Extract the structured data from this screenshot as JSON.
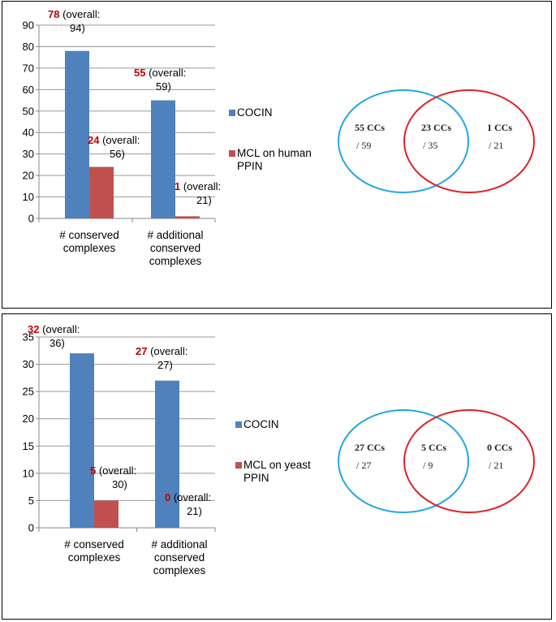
{
  "chart_data": [
    {
      "type": "bar",
      "categories": [
        "# conserved complexes",
        "# additional conserved complexes"
      ],
      "category_lines": [
        [
          "# conserved",
          "complexes"
        ],
        [
          "# additional",
          "conserved",
          "complexes"
        ]
      ],
      "series": [
        {
          "name": "COCIN",
          "color": "#4f81bd",
          "values": [
            78,
            55
          ],
          "overall": [
            94,
            59
          ]
        },
        {
          "name": "MCL on human PPIN",
          "color": "#c0504d",
          "values": [
            24,
            1
          ],
          "overall": [
            56,
            21
          ]
        }
      ],
      "legend_lines": [
        [
          "COCIN"
        ],
        [
          "MCL on human",
          "PPIN"
        ]
      ],
      "ylim": [
        0,
        90
      ],
      "yticks": [
        0,
        10,
        20,
        30,
        40,
        50,
        60,
        70,
        80,
        90
      ],
      "label_prefix": "(overall:",
      "label_suffix": ")",
      "venn": {
        "left": {
          "bold": "55 CCs",
          "sub": "/ 59"
        },
        "middle": {
          "bold": "23 CCs",
          "sub": "/ 35"
        },
        "right": {
          "bold": "1 CCs",
          "sub": "/ 21"
        },
        "left_color": "#22a7e0",
        "right_color": "#e0202a"
      }
    },
    {
      "type": "bar",
      "categories": [
        "# conserved complexes",
        "# additional conserved complexes"
      ],
      "category_lines": [
        [
          "# conserved",
          "complexes"
        ],
        [
          "# additional",
          "conserved",
          "complexes"
        ]
      ],
      "series": [
        {
          "name": "COCIN",
          "color": "#4f81bd",
          "values": [
            32,
            27
          ],
          "overall": [
            36,
            27
          ]
        },
        {
          "name": "MCL on yeast PPIN",
          "color": "#c0504d",
          "values": [
            5,
            0
          ],
          "overall": [
            30,
            21
          ]
        }
      ],
      "legend_lines": [
        [
          "COCIN"
        ],
        [
          "MCL on yeast",
          "PPIN"
        ]
      ],
      "ylim": [
        0,
        35
      ],
      "yticks": [
        0,
        5,
        10,
        15,
        20,
        25,
        30,
        35
      ],
      "label_prefix": "(overall:",
      "label_suffix": ")",
      "venn": {
        "left": {
          "bold": "27 CCs",
          "sub": "/ 27"
        },
        "middle": {
          "bold": "5 CCs",
          "sub": "/ 9"
        },
        "right": {
          "bold": "0 CCs",
          "sub": "/ 21"
        },
        "left_color": "#22a7e0",
        "right_color": "#e0202a"
      }
    }
  ]
}
